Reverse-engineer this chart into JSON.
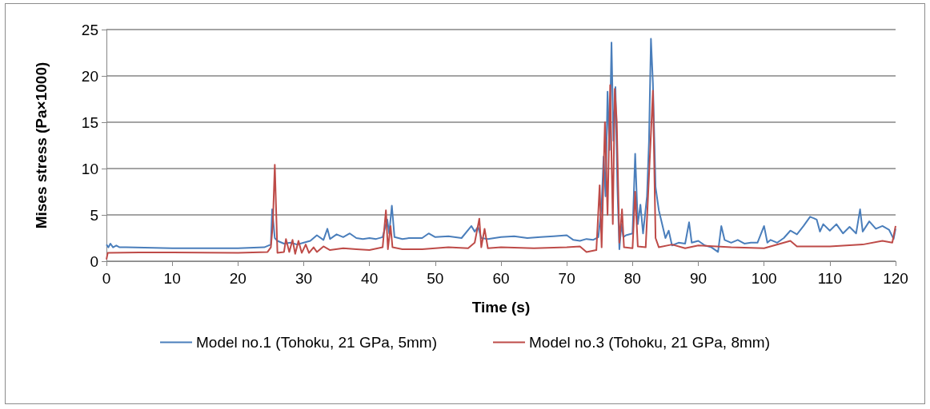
{
  "chart_data": {
    "type": "line",
    "xlabel": "Time (s)",
    "ylabel": "Mises stress (Pa×1000)",
    "xlim": [
      0,
      120
    ],
    "xticks": [
      0,
      10,
      20,
      30,
      40,
      50,
      60,
      70,
      80,
      90,
      100,
      110,
      120
    ],
    "ylim": [
      0,
      25
    ],
    "yticks": [
      0,
      5,
      10,
      15,
      20,
      25
    ],
    "grid": "y",
    "legend": "bottom",
    "marker": "none",
    "line_style": "solid",
    "series": [
      {
        "name": "Model no.1 (Tohoku, 21 GPa, 5mm)",
        "color": "#4a7ebb",
        "x": [
          0,
          0.3,
          0.6,
          1,
          1.5,
          2,
          3,
          10,
          20,
          24,
          25,
          25.2,
          25.6,
          26,
          27,
          28,
          29,
          30,
          31,
          32,
          33,
          33.6,
          34,
          35,
          36,
          37,
          38,
          39,
          40,
          41,
          42,
          42.7,
          43,
          43.4,
          43.8,
          45,
          46,
          48,
          49,
          50,
          52,
          54,
          55.5,
          56,
          56.5,
          57,
          58,
          60,
          62,
          64,
          66,
          68,
          70,
          71,
          72,
          73,
          74,
          74.8,
          75.3,
          75.6,
          75.9,
          76.2,
          76.5,
          76.8,
          77.1,
          77.4,
          77.7,
          78,
          78.3,
          78.6,
          79,
          80,
          80.4,
          80.8,
          81.2,
          81.6,
          82.2,
          82.5,
          82.8,
          83.1,
          83.5,
          84,
          84.5,
          85,
          85.5,
          86,
          87,
          88,
          88.6,
          89,
          90,
          91,
          92,
          93,
          93.5,
          94,
          95,
          96,
          97,
          98,
          99,
          100,
          100.5,
          101,
          102,
          103,
          104,
          105,
          106,
          107,
          108,
          108.5,
          109,
          110,
          111,
          112,
          113,
          114,
          114.6,
          115,
          116,
          117,
          118,
          119,
          119.7,
          120
        ],
        "values": [
          1.8,
          1.5,
          1.9,
          1.5,
          1.7,
          1.5,
          1.5,
          1.4,
          1.4,
          1.5,
          1.8,
          5.6,
          2.5,
          2.2,
          1.9,
          2,
          1.8,
          2,
          2.2,
          2.8,
          2.3,
          3.5,
          2.4,
          2.9,
          2.6,
          3,
          2.5,
          2.4,
          2.5,
          2.4,
          2.6,
          4.5,
          3,
          6,
          2.6,
          2.4,
          2.5,
          2.5,
          3,
          2.6,
          2.7,
          2.5,
          3.8,
          3.2,
          3.7,
          2.5,
          2.4,
          2.6,
          2.7,
          2.5,
          2.6,
          2.7,
          2.8,
          2.3,
          2.2,
          2.4,
          2.3,
          2.6,
          6,
          11.3,
          7,
          18.3,
          12,
          23.6,
          13,
          18.8,
          8,
          1.3,
          4,
          2.6,
          2.8,
          3,
          11.6,
          4,
          6.1,
          3,
          7,
          12.9,
          24,
          19.2,
          8,
          5.5,
          4,
          2.5,
          3.3,
          1.7,
          2,
          1.9,
          4.2,
          2,
          2.2,
          1.7,
          1.5,
          1,
          3.8,
          2.3,
          2,
          2.3,
          1.9,
          2,
          2,
          3.8,
          2,
          2.3,
          2,
          2.5,
          3.3,
          2.9,
          3.8,
          4.8,
          4.5,
          3.2,
          4,
          3.3,
          4,
          3,
          3.7,
          3,
          5.6,
          3.2,
          4.3,
          3.5,
          3.8,
          3.4,
          2.4,
          3.5
        ]
      },
      {
        "name": "Model no.3 (Tohoku, 21 GPa, 8mm)",
        "color": "#be4b48",
        "x": [
          0,
          0.2,
          5,
          10,
          20,
          24.5,
          25,
          25.3,
          25.6,
          26,
          27,
          27.3,
          27.8,
          28.3,
          28.7,
          29.2,
          29.7,
          30.3,
          30.8,
          31.5,
          32,
          33,
          34,
          36,
          38,
          40,
          42,
          42.5,
          42.8,
          43.2,
          43.5,
          45,
          48,
          50,
          52,
          55,
          56,
          56.7,
          57,
          57.5,
          58,
          60,
          65,
          70,
          72,
          73,
          74.5,
          75,
          75.3,
          75.8,
          76.2,
          76.6,
          77,
          77.3,
          77.6,
          78,
          78.4,
          78.7,
          80,
          80.4,
          80.8,
          82,
          83.1,
          83.5,
          84,
          86,
          88,
          90,
          95,
          100,
          104,
          105,
          110,
          115,
          118,
          119.5,
          120
        ],
        "values": [
          0.2,
          0.9,
          0.95,
          0.95,
          0.9,
          1,
          1.5,
          4,
          10.4,
          0.9,
          1,
          2.4,
          1,
          2.3,
          0.8,
          2.2,
          0.9,
          1.8,
          0.9,
          1.5,
          1,
          1.6,
          1.2,
          1.4,
          1.3,
          1.2,
          1.5,
          5.5,
          1.3,
          3.8,
          1.5,
          1.3,
          1.3,
          1.4,
          1.5,
          1.4,
          2,
          4.6,
          1.5,
          3.5,
          1.4,
          1.5,
          1.4,
          1.5,
          1.6,
          1,
          1.2,
          8.2,
          1.5,
          15,
          5,
          19,
          4,
          18.6,
          15.1,
          2,
          5.6,
          1.5,
          1.4,
          7.5,
          1.6,
          1.5,
          18.4,
          2.5,
          1.5,
          1.8,
          1.4,
          1.7,
          1.5,
          1.4,
          2.2,
          1.6,
          1.6,
          1.8,
          2.2,
          2,
          3.8
        ]
      }
    ]
  }
}
